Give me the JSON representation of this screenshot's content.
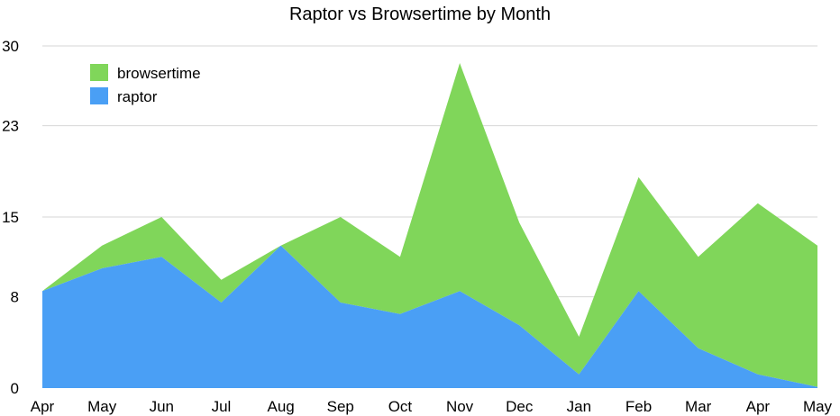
{
  "chart_data": {
    "type": "area",
    "title": "Raptor vs Browsertime by Month",
    "xlabel": "",
    "ylabel": "",
    "categories": [
      "Apr",
      "May",
      "Jun",
      "Jul",
      "Aug",
      "Sep",
      "Oct",
      "Nov",
      "Dec",
      "Jan",
      "Feb",
      "Mar",
      "Apr",
      "May"
    ],
    "stacked": true,
    "series": [
      {
        "name": "raptor",
        "color": "#4a9ff5",
        "values": [
          8.5,
          10.5,
          11.5,
          7.5,
          12.5,
          7.5,
          6.5,
          8.5,
          5.5,
          1.2,
          8.5,
          3.5,
          1.2,
          0.1
        ]
      },
      {
        "name": "browsertime",
        "color": "#80d65a",
        "values": [
          0,
          2,
          3.5,
          2,
          0,
          7.5,
          5,
          20,
          9,
          3.3,
          10,
          8,
          15,
          12.4
        ]
      }
    ],
    "yticks": [
      "0",
      "8",
      "15",
      "23",
      "30"
    ],
    "ylim": [
      0,
      30
    ],
    "grid": true,
    "legend_position": "top-left"
  }
}
